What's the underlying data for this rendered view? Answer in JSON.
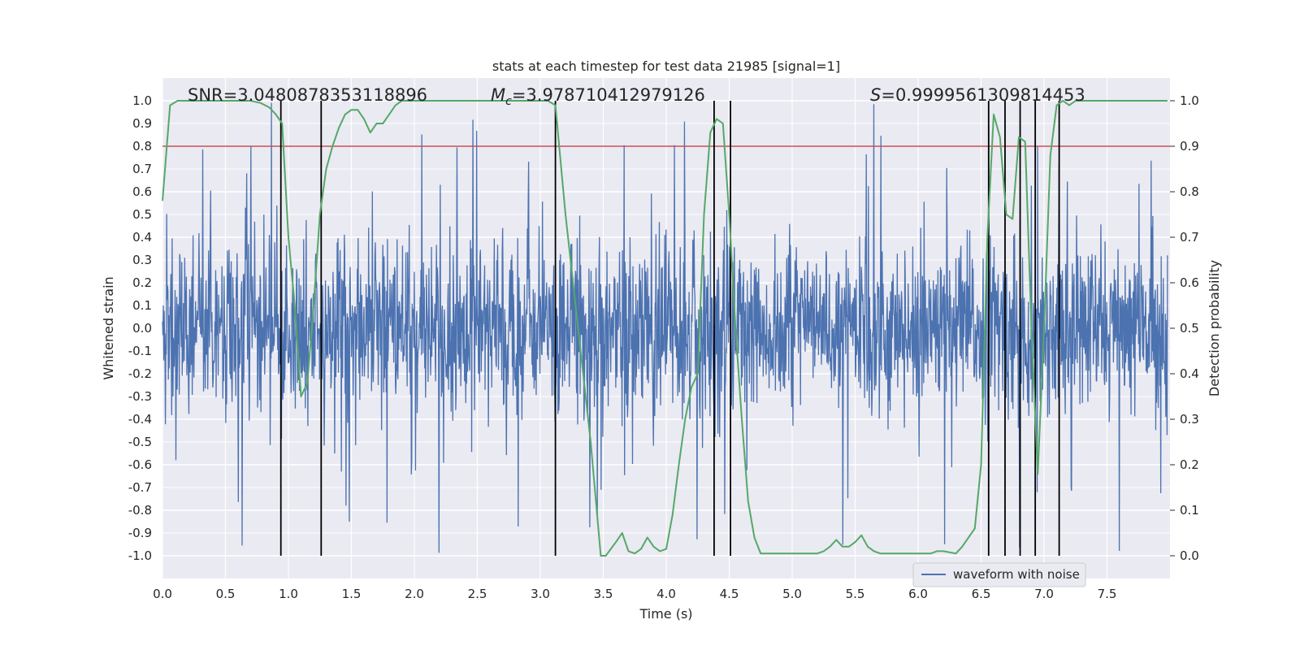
{
  "chart_data": {
    "type": "line",
    "title": "stats at each timestep for test data 21985 [signal=1]",
    "xlabel": "Time (s)",
    "ylabel_left": "Whitened strain",
    "ylabel_right": "Detection probability",
    "xlim": [
      0.0,
      8.0
    ],
    "ylim_left": [
      -1.1,
      1.1
    ],
    "ylim_right": [
      -0.05,
      1.05
    ],
    "x_ticks": [
      "0.0",
      "0.5",
      "1.0",
      "1.5",
      "2.0",
      "2.5",
      "3.0",
      "3.5",
      "4.0",
      "4.5",
      "5.0",
      "5.5",
      "6.0",
      "6.5",
      "7.0",
      "7.5"
    ],
    "y_left_ticks": [
      "1.0",
      "0.9",
      "0.8",
      "0.7",
      "0.6",
      "0.5",
      "0.4",
      "0.3",
      "0.2",
      "0.1",
      "0.0",
      "-0.1",
      "-0.2",
      "-0.3",
      "-0.4",
      "-0.5",
      "-0.6",
      "-0.7",
      "-0.8",
      "-0.9",
      "-1.0"
    ],
    "y_right_ticks": [
      "1.0",
      "0.9",
      "0.8",
      "0.7",
      "0.6",
      "0.5",
      "0.4",
      "0.3",
      "0.2",
      "0.1",
      "0.0"
    ],
    "annotations": {
      "snr": "SNR=3.0480878353118896",
      "mc_symbol": "M",
      "mc_sub": "c",
      "mc_value": "=3.978710412979126",
      "s_symbol": "S",
      "s_value": "=0.9999561309814453"
    },
    "threshold": 0.9,
    "grid": true,
    "legend": {
      "entries": [
        "waveform with noise"
      ],
      "position": "lower-right"
    },
    "series": [
      {
        "name": "waveform with noise",
        "axis": "left",
        "color": "#4c72b0",
        "description": "noisy whitened strain, dense, bulk within about ±0.4 with spikes to about ±1"
      },
      {
        "name": "detection probability",
        "axis": "right",
        "color": "#55a868",
        "x": [
          0.0,
          0.06,
          0.12,
          0.2,
          0.4,
          0.6,
          0.7,
          0.78,
          0.85,
          0.9,
          0.95,
          1.0,
          1.05,
          1.1,
          1.15,
          1.2,
          1.25,
          1.3,
          1.35,
          1.4,
          1.45,
          1.5,
          1.55,
          1.6,
          1.65,
          1.7,
          1.75,
          1.8,
          1.85,
          1.9,
          2.0,
          2.2,
          2.5,
          2.8,
          3.0,
          3.06,
          3.12,
          3.2,
          3.3,
          3.4,
          3.48,
          3.52,
          3.6,
          3.65,
          3.7,
          3.75,
          3.8,
          3.85,
          3.9,
          3.95,
          4.0,
          4.05,
          4.1,
          4.15,
          4.2,
          4.25,
          4.3,
          4.35,
          4.4,
          4.45,
          4.5,
          4.55,
          4.6,
          4.65,
          4.7,
          4.75,
          4.8,
          4.85,
          4.9,
          4.95,
          5.0,
          5.1,
          5.2,
          5.25,
          5.3,
          5.35,
          5.4,
          5.45,
          5.5,
          5.55,
          5.6,
          5.65,
          5.7,
          5.75,
          5.8,
          5.9,
          6.0,
          6.1,
          6.15,
          6.2,
          6.3,
          6.35,
          6.4,
          6.45,
          6.5,
          6.55,
          6.6,
          6.65,
          6.7,
          6.75,
          6.8,
          6.85,
          6.9,
          6.95,
          7.0,
          7.05,
          7.1,
          7.15,
          7.2,
          7.25,
          7.3,
          7.35,
          7.4,
          7.5,
          7.8,
          7.98
        ],
        "y": [
          0.78,
          0.99,
          1.0,
          1.0,
          1.0,
          1.0,
          1.0,
          0.995,
          0.985,
          0.97,
          0.95,
          0.7,
          0.55,
          0.35,
          0.38,
          0.55,
          0.75,
          0.85,
          0.9,
          0.94,
          0.97,
          0.98,
          0.98,
          0.96,
          0.93,
          0.95,
          0.95,
          0.97,
          0.99,
          1.0,
          1.0,
          1.0,
          1.0,
          1.0,
          1.0,
          1.0,
          0.99,
          0.75,
          0.5,
          0.25,
          0.0,
          0.0,
          0.03,
          0.05,
          0.01,
          0.005,
          0.015,
          0.04,
          0.02,
          0.01,
          0.015,
          0.09,
          0.2,
          0.3,
          0.37,
          0.4,
          0.75,
          0.93,
          0.96,
          0.95,
          0.75,
          0.5,
          0.3,
          0.12,
          0.04,
          0.005,
          0.005,
          0.005,
          0.005,
          0.005,
          0.005,
          0.005,
          0.005,
          0.01,
          0.02,
          0.035,
          0.02,
          0.02,
          0.03,
          0.045,
          0.02,
          0.01,
          0.005,
          0.005,
          0.005,
          0.005,
          0.005,
          0.005,
          0.01,
          0.01,
          0.005,
          0.02,
          0.04,
          0.06,
          0.2,
          0.7,
          0.97,
          0.92,
          0.75,
          0.74,
          0.92,
          0.91,
          0.5,
          0.18,
          0.5,
          0.88,
          0.99,
          1.0,
          0.99,
          1.0,
          1.0,
          1.0,
          1.0,
          1.0,
          1.0,
          1.0
        ]
      },
      {
        "name": "threshold",
        "axis": "right",
        "color": "#c44e52",
        "value": 0.9
      }
    ],
    "event_lines_x": [
      0.94,
      1.26,
      3.12,
      4.38,
      4.51,
      6.56,
      6.69,
      6.81,
      6.93,
      7.12
    ]
  }
}
